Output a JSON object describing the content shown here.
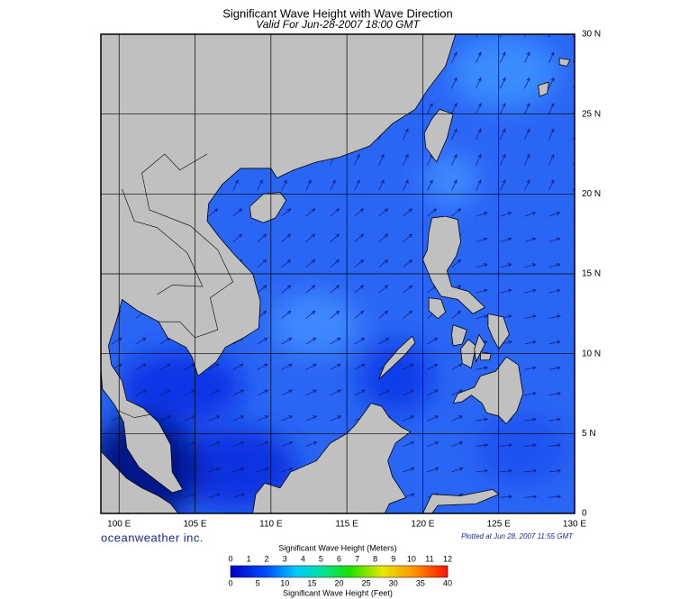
{
  "header": {
    "title": "Significant Wave Height with Wave Direction",
    "subtitle": "Valid For Jun-28-2007 18:00 GMT"
  },
  "map": {
    "lat_labels": [
      "30 N",
      "25 N",
      "20 N",
      "15 N",
      "10 N",
      "5 N",
      "0"
    ],
    "lon_labels": [
      "100 E",
      "105 E",
      "110 E",
      "115 E",
      "120 E",
      "125 E",
      "130 E"
    ]
  },
  "footer": {
    "brand": "oceanweather inc.",
    "plotted": "Plotted at Jun 28, 2007 11:55 GMT"
  },
  "legend": {
    "title": "Significant Wave Height (Meters)",
    "meter_ticks": [
      0,
      1,
      2,
      3,
      4,
      5,
      6,
      7,
      8,
      9,
      10,
      11,
      12
    ],
    "feet_ticks": [
      0,
      5,
      10,
      15,
      20,
      25,
      30,
      35,
      40
    ],
    "feet_title": "Significant Wave Height (Feet)"
  }
}
